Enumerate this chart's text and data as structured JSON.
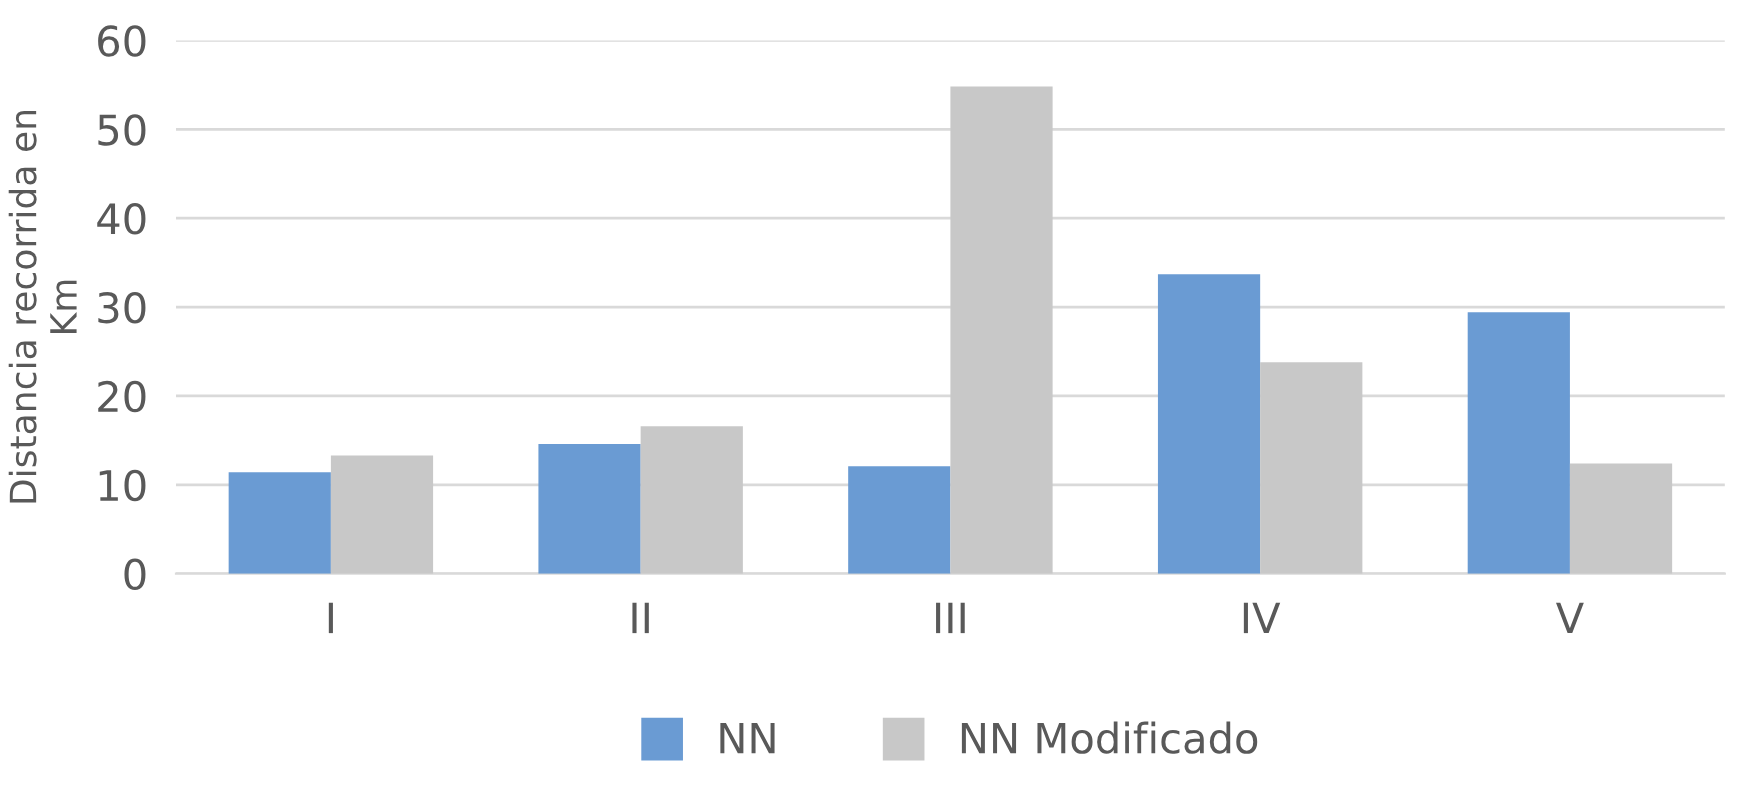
{
  "chart_data": {
    "type": "bar",
    "ylabel": "Distancia recorrida en\nKm",
    "categories": [
      "I",
      "II",
      "III",
      "IV",
      "V"
    ],
    "series": [
      {
        "name": "NN",
        "color": "#6a9bd3",
        "values": [
          11.4,
          14.6,
          12.1,
          33.7,
          29.4
        ]
      },
      {
        "name": "NN Modificado",
        "color": "#c8c8c8",
        "values": [
          13.3,
          16.6,
          54.8,
          23.8,
          12.4
        ]
      }
    ],
    "ylim": [
      0,
      60
    ],
    "yticks": [
      0,
      10,
      20,
      30,
      40,
      50,
      60
    ],
    "grid": "y",
    "legend": "bottom"
  }
}
